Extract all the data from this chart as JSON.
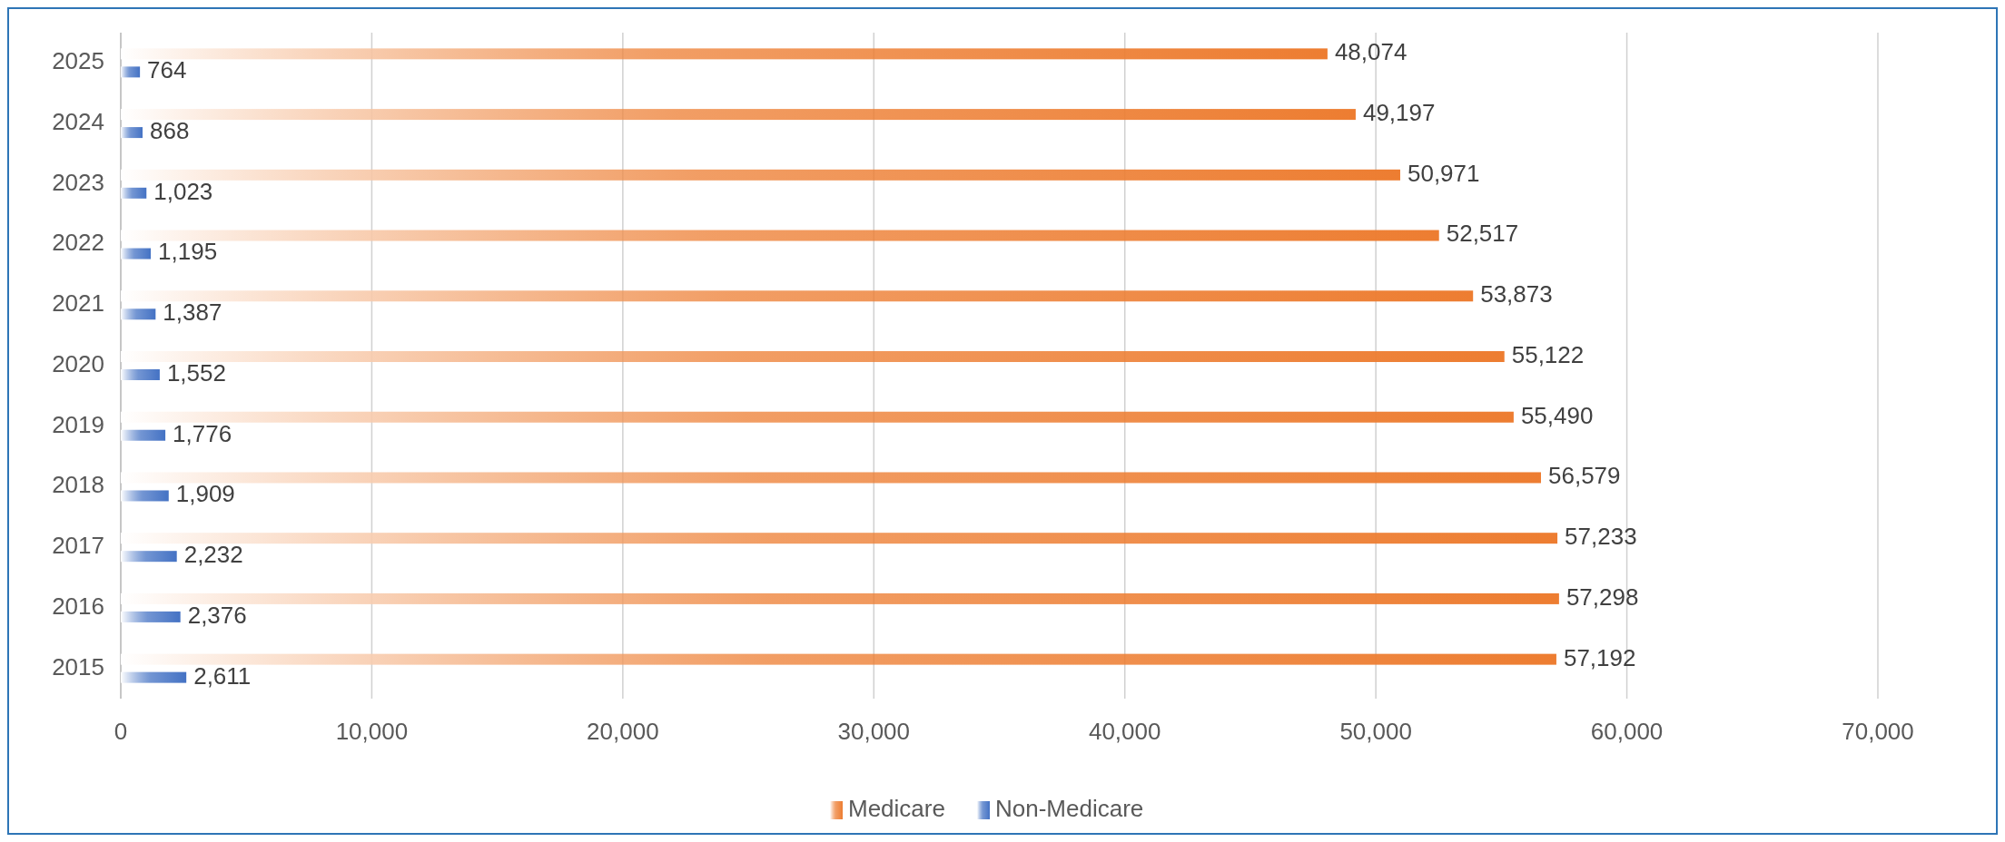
{
  "chart_data": {
    "type": "bar",
    "orientation": "horizontal",
    "categories": [
      "2025",
      "2024",
      "2023",
      "2022",
      "2021",
      "2020",
      "2019",
      "2018",
      "2017",
      "2016",
      "2015"
    ],
    "series": [
      {
        "name": "Medicare",
        "color": "#ed7d31",
        "values": [
          48074,
          49197,
          50971,
          52517,
          53873,
          55122,
          55490,
          56579,
          57233,
          57298,
          57192
        ],
        "value_labels": [
          "48,074",
          "49,197",
          "50,971",
          "52,517",
          "53,873",
          "55,122",
          "55,490",
          "56,579",
          "57,233",
          "57,298",
          "57,192"
        ]
      },
      {
        "name": "Non-Medicare",
        "color": "#4472c4",
        "values": [
          764,
          868,
          1023,
          1195,
          1387,
          1552,
          1776,
          1909,
          2232,
          2376,
          2611
        ],
        "value_labels": [
          "764",
          "868",
          "1,023",
          "1,195",
          "1,387",
          "1,552",
          "1,776",
          "1,909",
          "2,232",
          "2,376",
          "2,611"
        ]
      }
    ],
    "xlim": [
      0,
      70000
    ],
    "xticks": [
      0,
      {
        "value": 10000,
        "label": "10,000"
      },
      {
        "value": 20000,
        "label": "20,000"
      },
      {
        "value": 30000,
        "label": "30,000"
      },
      {
        "value": 40000,
        "label": "40,000"
      },
      {
        "value": 50000,
        "label": "50,000"
      },
      {
        "value": 60000,
        "label": "60,000"
      },
      {
        "value": 70000,
        "label": "70,000"
      }
    ],
    "grid": "x",
    "legend": "bottom"
  }
}
